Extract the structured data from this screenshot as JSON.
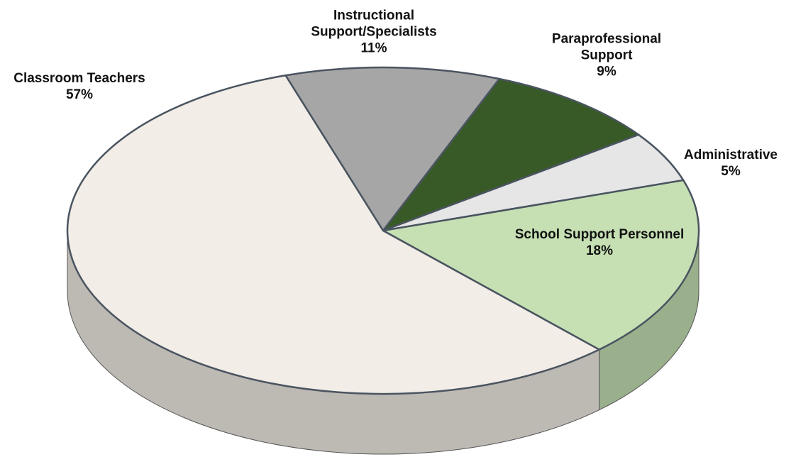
{
  "chart_data": {
    "type": "pie",
    "categories": [
      "Instructional Support/Specialists",
      "Paraprofessional Support",
      "Administrative",
      "School Support Personnel",
      "Classroom Teachers"
    ],
    "values": [
      11,
      9,
      5,
      18,
      57
    ],
    "value_labels": [
      "11%",
      "9%",
      "5%",
      "18%",
      "57%"
    ],
    "colors": [
      "#a6a6a6",
      "#385a26",
      "#e6e6e6",
      "#c6e0b4",
      "#f2ede6"
    ]
  }
}
